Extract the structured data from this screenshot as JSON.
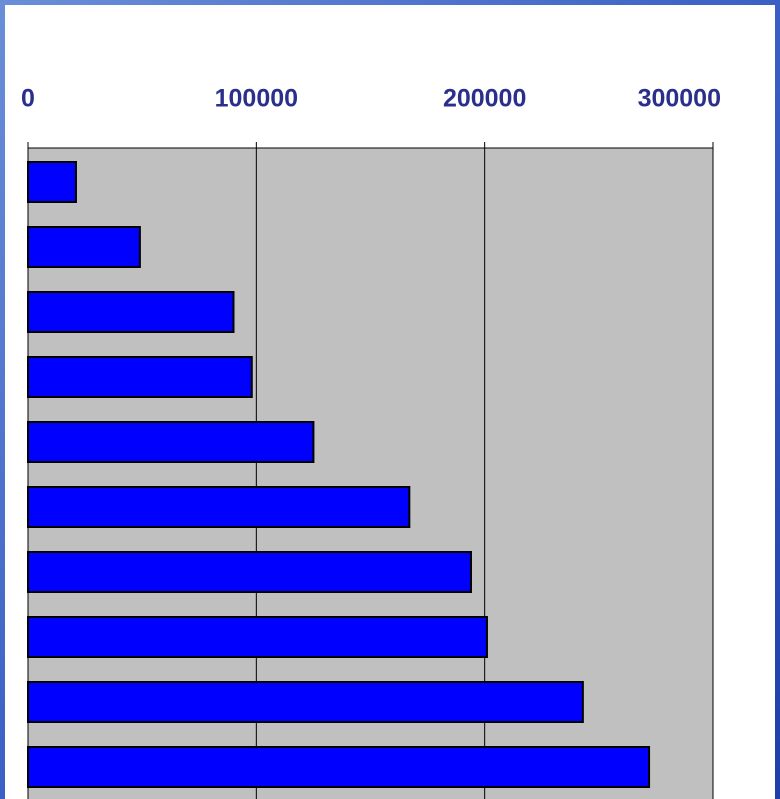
{
  "chart_data": {
    "type": "bar",
    "orientation": "horizontal",
    "categories": [
      null,
      null,
      null,
      null,
      null,
      null,
      null,
      null,
      null,
      null
    ],
    "values": [
      21000,
      49000,
      90000,
      98000,
      125000,
      167000,
      194000,
      201000,
      243000,
      272000
    ],
    "color": "#0000ff",
    "xlim": [
      0,
      300000
    ],
    "xticks": [
      0,
      100000,
      200000,
      300000
    ],
    "grid": true
  }
}
